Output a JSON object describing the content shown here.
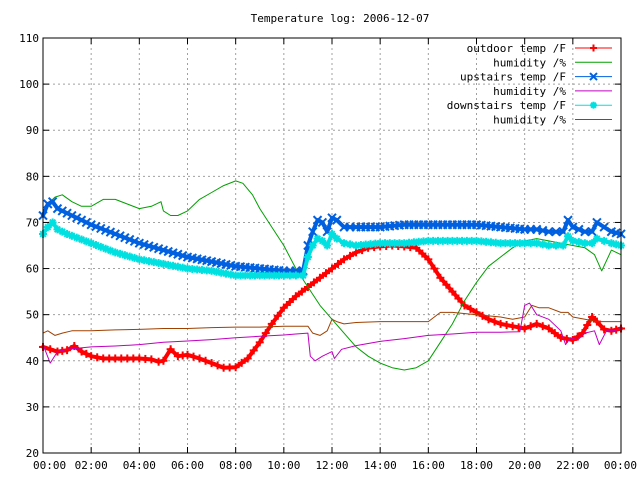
{
  "chart_data": {
    "type": "line",
    "title": "Temperature log: 2006-12-07",
    "xlabel": "",
    "ylabel": "",
    "xlim": [
      0,
      24
    ],
    "ylim": [
      20,
      110
    ],
    "grid": true,
    "legend_position": "top-right",
    "x_tick_labels": [
      "00:00",
      "02:00",
      "04:00",
      "06:00",
      "08:00",
      "10:00",
      "12:00",
      "14:00",
      "16:00",
      "18:00",
      "20:00",
      "22:00",
      "00:00"
    ],
    "x_tick_values": [
      0,
      2,
      4,
      6,
      8,
      10,
      12,
      14,
      16,
      18,
      20,
      22,
      24
    ],
    "y_ticks": [
      20,
      30,
      40,
      50,
      60,
      70,
      80,
      90,
      100,
      110
    ],
    "series": [
      {
        "name": "outdoor temp /F",
        "color": "#ff0000",
        "marker": "plus",
        "x": [
          0,
          0.3,
          0.6,
          1,
          1.3,
          1.6,
          2,
          2.5,
          3,
          3.5,
          4,
          4.5,
          4.8,
          5,
          5.3,
          5.6,
          6,
          6.5,
          7,
          7.5,
          8,
          8.5,
          9,
          9.5,
          10,
          10.5,
          11,
          11.5,
          12,
          12.5,
          13,
          13.5,
          14,
          14.5,
          15,
          15.5,
          16,
          16.5,
          17,
          17.5,
          18,
          18.5,
          19,
          19.5,
          20,
          20.5,
          21,
          21.5,
          22,
          22.4,
          22.8,
          23,
          23.3,
          23.6,
          24
        ],
        "y": [
          43,
          42.5,
          42,
          42.3,
          43.2,
          42,
          41,
          40.5,
          40.5,
          40.5,
          40.5,
          40.3,
          39.8,
          40,
          42.5,
          41,
          41.3,
          40.5,
          39.5,
          38.5,
          38.6,
          40.5,
          44,
          48,
          51.5,
          54,
          56,
          58,
          60,
          62,
          63.5,
          64.5,
          64.8,
          65,
          64.8,
          64.5,
          62,
          58,
          55,
          52,
          50.5,
          49,
          48,
          47.5,
          47,
          48,
          47,
          45,
          44.5,
          46,
          49.5,
          48.5,
          46.8,
          46.5,
          47
        ]
      },
      {
        "name": "humidity /%",
        "color": "#00a000",
        "marker": "none",
        "x": [
          0,
          0.2,
          0.5,
          0.8,
          1.2,
          1.6,
          2,
          2.5,
          3,
          3.5,
          4,
          4.5,
          4.9,
          5,
          5.3,
          5.6,
          6,
          6.5,
          7,
          7.5,
          8,
          8.3,
          8.7,
          9,
          9.5,
          10,
          10.5,
          11,
          11.5,
          12,
          12.5,
          13,
          13.5,
          14,
          14.5,
          15,
          15.5,
          16,
          16.5,
          17,
          17.5,
          18,
          18.5,
          19,
          19.5,
          20,
          20.5,
          21,
          21.5,
          22,
          22.5,
          22.9,
          23.2,
          23.6,
          24
        ],
        "y": [
          72,
          74,
          75.5,
          76,
          74.5,
          73.5,
          73.5,
          75,
          75,
          74,
          73,
          73.5,
          74.5,
          72.5,
          71.5,
          71.5,
          72.5,
          75,
          76.5,
          78,
          79,
          78.5,
          76,
          73,
          69,
          65,
          60,
          56,
          52,
          49,
          46,
          43,
          41,
          39.5,
          38.5,
          38,
          38.5,
          40,
          44,
          48,
          53,
          57,
          60.5,
          62.5,
          64.5,
          66,
          66.5,
          66,
          65.5,
          65,
          64.5,
          63,
          59.5,
          64,
          63
        ]
      },
      {
        "name": "upstairs temp /F",
        "color": "#0060e0",
        "marker": "x",
        "x": [
          0,
          0.2,
          0.4,
          0.6,
          1,
          2,
          3,
          4,
          5,
          6,
          7,
          8,
          9,
          10,
          10.5,
          10.8,
          11,
          11.2,
          11.4,
          11.6,
          11.8,
          12,
          12.2,
          12.5,
          13,
          14,
          15,
          16,
          17,
          18,
          19,
          20,
          20.5,
          21,
          21.3,
          21.6,
          21.8,
          22,
          22.5,
          22.8,
          23,
          23.3,
          23.6,
          24
        ],
        "y": [
          71.5,
          74,
          74.5,
          73,
          72,
          69.5,
          67.5,
          65.5,
          64,
          62.5,
          61.5,
          60.5,
          60,
          59.5,
          59.5,
          59.5,
          65,
          68,
          70.5,
          70,
          68,
          71,
          70.5,
          69,
          69,
          69,
          69.5,
          69.5,
          69.5,
          69.5,
          69,
          68.5,
          68.5,
          68,
          68,
          68,
          70.5,
          69,
          68,
          68,
          70,
          69,
          68,
          67.5
        ]
      },
      {
        "name": "humidity /%",
        "color": "#c000c0",
        "marker": "none",
        "x": [
          0,
          0.3,
          0.6,
          1,
          2,
          3,
          4,
          5,
          6,
          7,
          8,
          9,
          10,
          10.5,
          11,
          11.1,
          11.3,
          11.6,
          12,
          12.1,
          12.4,
          13,
          14,
          15,
          16,
          17,
          18,
          19,
          19.8,
          20,
          20.2,
          20.5,
          21,
          21.5,
          21.7,
          21.9,
          22.2,
          22.5,
          22.9,
          23.1,
          23.4,
          23.7,
          24
        ],
        "y": [
          43.5,
          39.5,
          42,
          42.5,
          43,
          43.2,
          43.5,
          44,
          44.3,
          44.6,
          45,
          45.3,
          45.6,
          45.8,
          46,
          41,
          40,
          41,
          42,
          40.5,
          42.5,
          43.3,
          44.2,
          44.8,
          45.5,
          45.8,
          46.2,
          46.2,
          46.3,
          52,
          52.5,
          50,
          49,
          46.5,
          43.5,
          45,
          44.5,
          46,
          46.5,
          43.5,
          46.5,
          46.5,
          47
        ]
      },
      {
        "name": "downstairs temp /F",
        "color": "#00e0e0",
        "marker": "asterisk",
        "x": [
          0,
          0.2,
          0.4,
          0.6,
          1,
          2,
          3,
          4,
          5,
          6,
          7,
          8,
          9,
          10,
          10.5,
          10.8,
          11,
          11.2,
          11.4,
          11.6,
          11.8,
          12,
          12.2,
          12.5,
          13,
          14,
          15,
          16,
          17,
          18,
          19,
          20,
          20.5,
          21,
          21.3,
          21.6,
          21.8,
          22,
          22.5,
          22.8,
          23,
          23.3,
          23.6,
          24
        ],
        "y": [
          67.5,
          69,
          70,
          68.5,
          67.5,
          65.5,
          63.5,
          62,
          61,
          60,
          59.5,
          58.5,
          58.5,
          58.5,
          58.5,
          58.5,
          62.5,
          65,
          66.5,
          66,
          65,
          67.5,
          66.5,
          65.5,
          65,
          65.5,
          65.5,
          66,
          66,
          66,
          65.5,
          65.5,
          65.5,
          65,
          65,
          65,
          67,
          66,
          65.5,
          65.5,
          66.5,
          66,
          65.5,
          65
        ]
      },
      {
        "name": "humidity /%",
        "color": "#a04000",
        "marker": "none",
        "x": [
          0,
          0.2,
          0.5,
          0.8,
          1.2,
          2,
          3,
          4,
          5,
          6,
          7,
          8,
          9,
          10,
          10.5,
          11,
          11.2,
          11.5,
          11.8,
          12,
          12.2,
          12.5,
          13,
          14,
          15,
          16,
          16.5,
          17,
          18,
          19,
          19.5,
          20,
          20.3,
          20.6,
          21,
          21.5,
          21.8,
          22,
          22.5,
          23,
          23.5,
          24
        ],
        "y": [
          46,
          46.5,
          45.5,
          46,
          46.5,
          46.5,
          46.7,
          46.8,
          47,
          47,
          47.2,
          47.3,
          47.3,
          47.5,
          47.5,
          47.5,
          46,
          45.5,
          46.5,
          49,
          48.5,
          48,
          48.3,
          48.5,
          48.5,
          48.5,
          50.5,
          50.5,
          50,
          49.5,
          49,
          49.5,
          52,
          51.5,
          51.5,
          50.5,
          50.5,
          49.5,
          49,
          48.5,
          48.5,
          48.5
        ]
      }
    ]
  }
}
